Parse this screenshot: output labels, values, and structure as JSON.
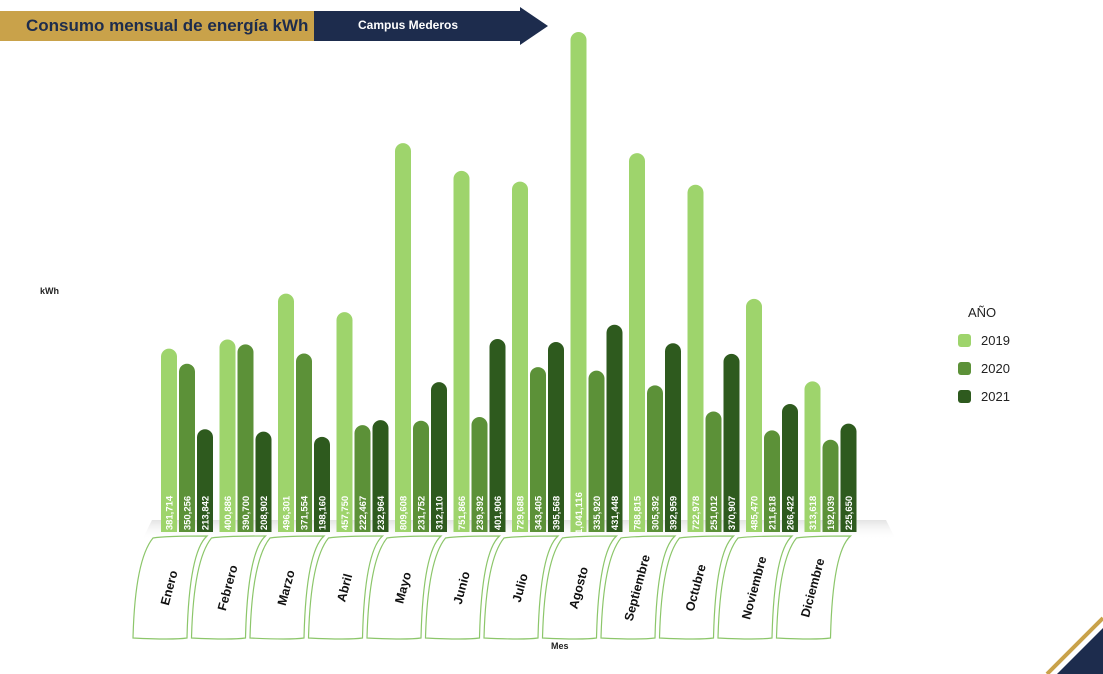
{
  "header": {
    "title": "Consumo mensual de energía kWh",
    "campus": "Campus Mederos"
  },
  "colors": {
    "gold": "#c9a24a",
    "navy": "#1d2c4d",
    "s2019": "#9ed46c",
    "s2020": "#5c9138",
    "s2021": "#2e5a1e"
  },
  "chart_data": {
    "type": "bar",
    "xlabel": "Mes",
    "ylabel": "kWh",
    "legend_title": "AÑO",
    "legend_position": "right",
    "grid": false,
    "ylim": [
      0,
      1100000
    ],
    "categories": [
      "Enero",
      "Febrero",
      "Marzo",
      "Abril",
      "Mayo",
      "Junio",
      "Julio",
      "Agosto",
      "Septiembre",
      "Octubre",
      "Noviembre",
      "Diciembre"
    ],
    "series": [
      {
        "name": "2019",
        "color": "#9ed46c",
        "values": [
          381714,
          400886,
          496301,
          457750,
          809608,
          751866,
          729688,
          1041116,
          788815,
          722978,
          485470,
          313618
        ],
        "labels": [
          "381,714",
          "400,886",
          "496,301",
          "457,750",
          "809,608",
          "751,866",
          "729,688",
          "1,041,116",
          "788,815",
          "722,978",
          "485,470",
          "313,618"
        ]
      },
      {
        "name": "2020",
        "color": "#5c9138",
        "values": [
          350256,
          390700,
          371554,
          222467,
          231752,
          239392,
          343405,
          335920,
          305392,
          251012,
          211618,
          192039
        ],
        "labels": [
          "350,256",
          "390,700",
          "371,554",
          "222,467",
          "231,752",
          "239,392",
          "343,405",
          "335,920",
          "305,392",
          "251,012",
          "211,618",
          "192,039"
        ]
      },
      {
        "name": "2021",
        "color": "#2e5a1e",
        "values": [
          213842,
          208902,
          198160,
          232964,
          312110,
          401906,
          395568,
          431448,
          392959,
          370907,
          266422,
          225650
        ],
        "labels": [
          "213,842",
          "208,902",
          "198,160",
          "232,964",
          "312,110",
          "401,906",
          "395,568",
          "431,448",
          "392,959",
          "370,907",
          "266,422",
          "225,650"
        ]
      }
    ]
  }
}
